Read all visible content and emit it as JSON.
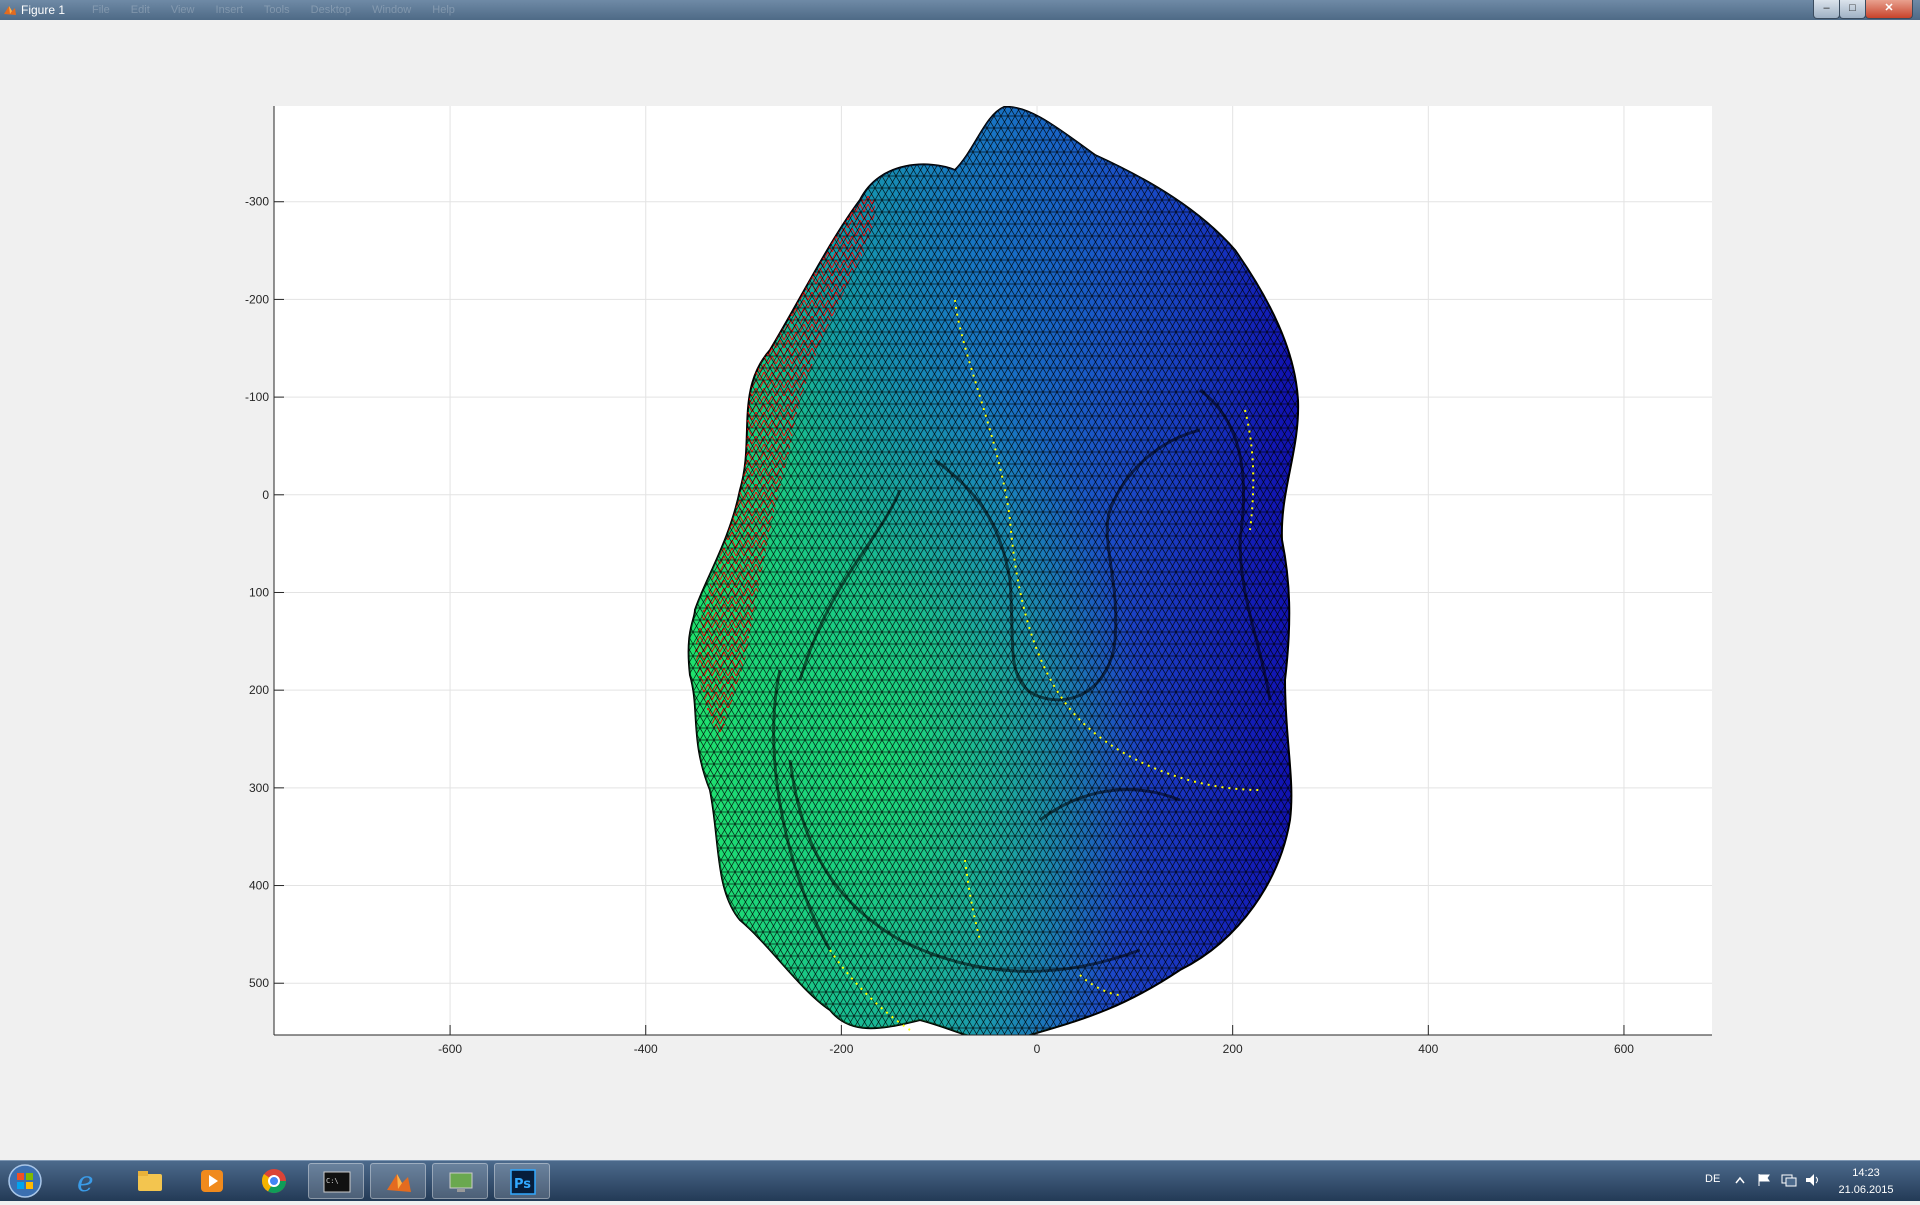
{
  "window": {
    "title": "Figure 1",
    "menu": [
      "File",
      "Edit",
      "View",
      "Insert",
      "Tools",
      "Desktop",
      "Window",
      "Help"
    ],
    "buttons": {
      "minimize": "–",
      "maximize": "□",
      "close": "✕"
    }
  },
  "chart_data": {
    "type": "3d-surface",
    "title": "",
    "xlabel": "",
    "ylabel": "",
    "xlim": [
      -780,
      690
    ],
    "ylim": [
      -398,
      553
    ],
    "y_reversed": true,
    "grid": true,
    "x_ticks": [
      -600,
      -400,
      -200,
      0,
      200,
      400,
      600
    ],
    "y_ticks": [
      -300,
      -200,
      -100,
      0,
      100,
      200,
      300,
      400,
      500
    ],
    "colormap": [
      "#1010b0",
      "#1c46c6",
      "#1a7fc0",
      "#14a8a0",
      "#16cc7c",
      "#1fe06a"
    ],
    "edge_colors": {
      "mesh": "#000000",
      "highlight_red": "#ff0000",
      "highlight_yellow": "#ffff00"
    }
  },
  "taskbar": {
    "apps": [
      "start-orb",
      "internet-explorer",
      "file-explorer",
      "media-player",
      "chrome",
      "command-prompt",
      "matlab",
      "remote-desktop",
      "photoshop"
    ],
    "tray": {
      "language": "DE",
      "time": "14:23",
      "date": "21.06.2015"
    }
  }
}
